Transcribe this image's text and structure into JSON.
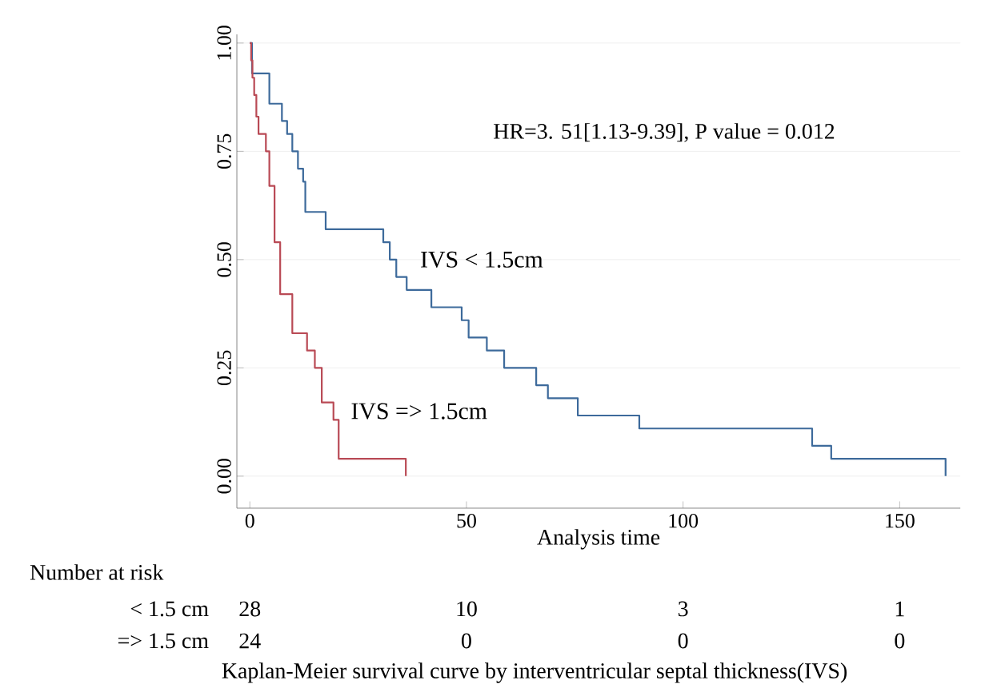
{
  "chart_data": {
    "type": "step",
    "xlabel": "Analysis time",
    "xlim": [
      -3,
      164
    ],
    "ylim": [
      -0.074,
      1.02
    ],
    "xticks": [
      0,
      50,
      100,
      150
    ],
    "yticks": [
      {
        "value": 0,
        "label": "0.00"
      },
      {
        "value": 0.25,
        "label": "0.25"
      },
      {
        "value": 0.5,
        "label": "0.50"
      },
      {
        "value": 0.75,
        "label": "0.75"
      },
      {
        "value": 1,
        "label": "1.00"
      }
    ],
    "grid": "y",
    "series": [
      {
        "name": "IVS < 1.5cm",
        "color": "#3d6a9b",
        "x": [
          0,
          0.5,
          4.5,
          7.4,
          8.6,
          9.8,
          11.1,
          12.3,
          12.8,
          17.5,
          30.8,
          32.3,
          33.8,
          36.2,
          41.9,
          48.9,
          50.5,
          54.7,
          58.7,
          66.1,
          68.8,
          75.7,
          89.9,
          129.8,
          134.2,
          160.6
        ],
        "values": [
          1,
          0.93,
          0.86,
          0.82,
          0.79,
          0.75,
          0.71,
          0.68,
          0.61,
          0.57,
          0.54,
          0.5,
          0.46,
          0.43,
          0.39,
          0.36,
          0.32,
          0.29,
          0.25,
          0.21,
          0.18,
          0.14,
          0.11,
          0.07,
          0.04,
          0
        ]
      },
      {
        "name": "IVS => 1.5cm",
        "color": "#b94a55",
        "x": [
          0,
          0.3,
          0.6,
          1.0,
          1.5,
          2.0,
          3.7,
          4.5,
          5.7,
          7.0,
          9.8,
          13.2,
          15.0,
          16.6,
          19.3,
          20.5,
          36.0
        ],
        "values": [
          1,
          0.96,
          0.92,
          0.88,
          0.83,
          0.79,
          0.75,
          0.67,
          0.54,
          0.42,
          0.33,
          0.29,
          0.25,
          0.17,
          0.13,
          0.04,
          0
        ]
      }
    ],
    "annotations": [
      "HR=3. 51[1.13-9.39], P value = 0.012",
      "Number at risk",
      "< 1.5 cm",
      "28",
      "10",
      "3",
      "1",
      "=> 1.5 cm",
      "24",
      "0",
      "0",
      "0",
      "Kaplan-Meier survival curve by interventricular septal thickness(IVS)"
    ]
  }
}
